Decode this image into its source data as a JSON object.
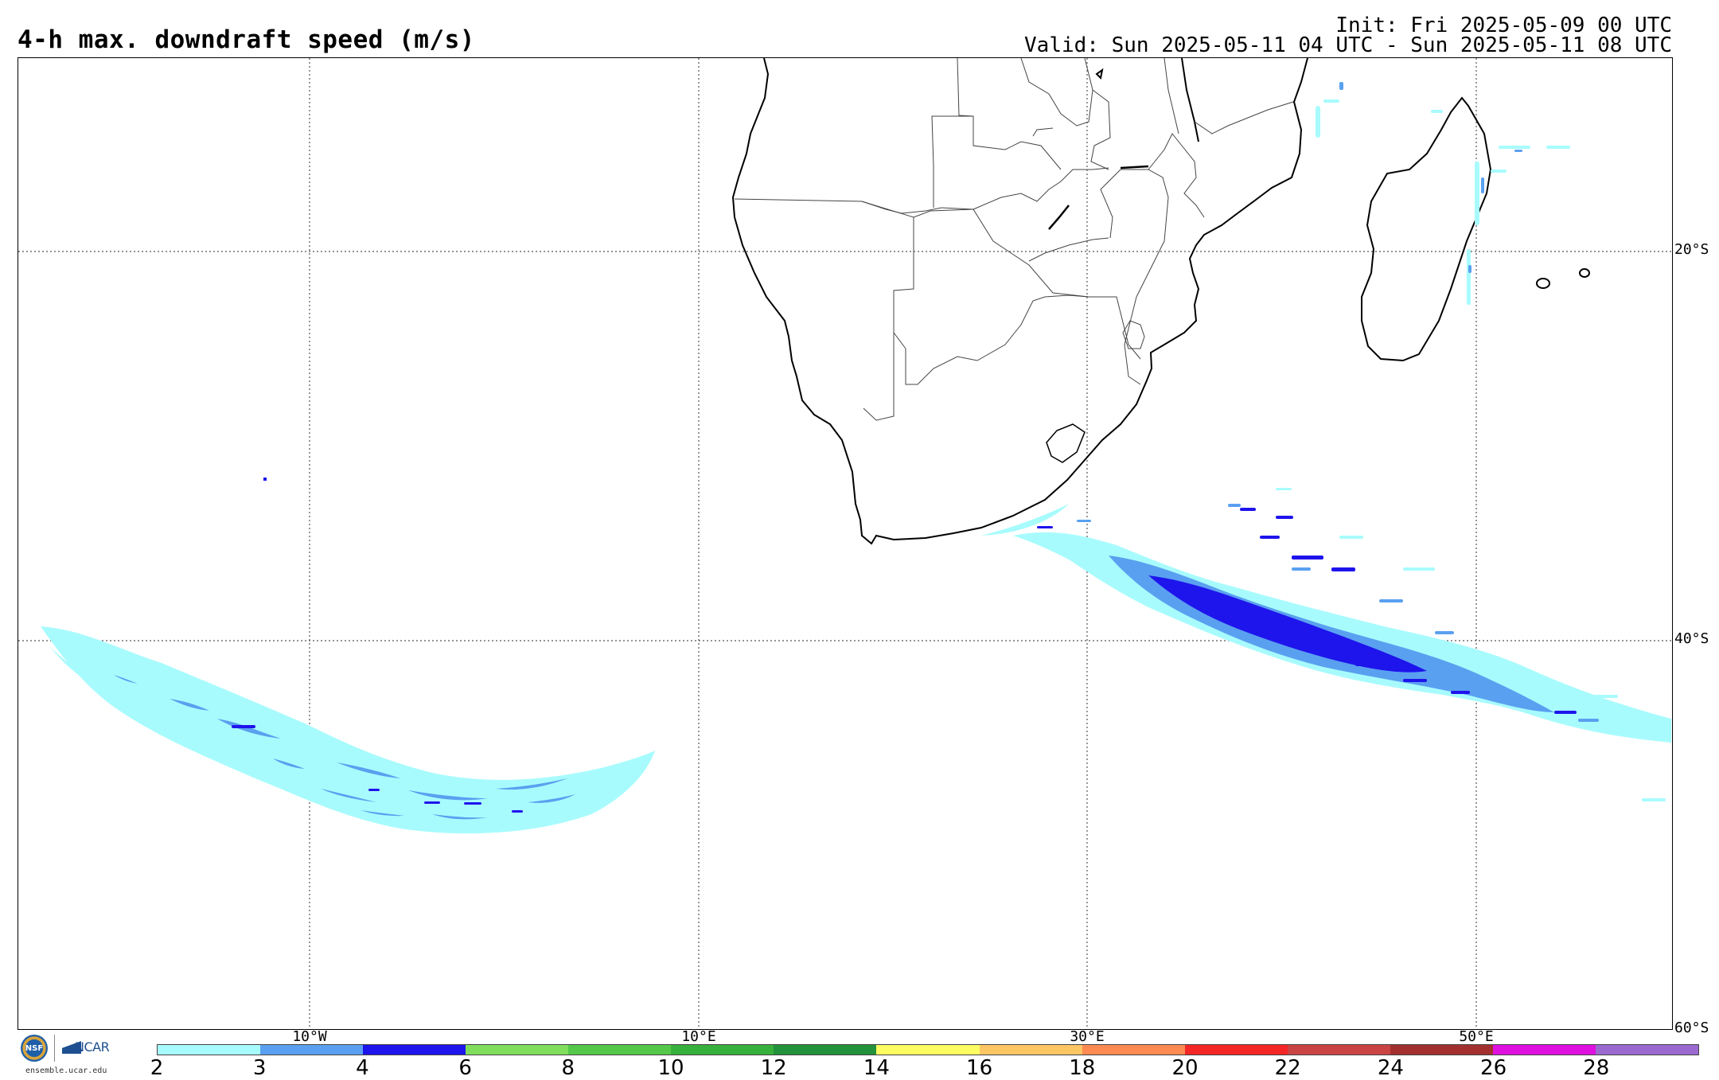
{
  "header": {
    "title": "4-h max. downdraft speed (m/s)",
    "init": "Init: Fri 2025-05-09 00 UTC",
    "valid": "Valid: Sun 2025-05-11 04 UTC - Sun 2025-05-11 08 UTC"
  },
  "map": {
    "lat_labels": [
      "20°S",
      "40°S",
      "60°S"
    ],
    "lon_labels": [
      "10°W",
      "10°E",
      "30°E",
      "50°E"
    ],
    "region": "Southern Africa and South Atlantic / Indian Ocean",
    "grid": "dotted"
  },
  "colorbar": {
    "ticks": [
      "2",
      "3",
      "4",
      "6",
      "8",
      "10",
      "12",
      "14",
      "16",
      "18",
      "20",
      "22",
      "24",
      "26",
      "28"
    ],
    "colors": [
      "#a8fbfd",
      "#5aa0f0",
      "#1e14ec",
      "#80de5c",
      "#55c84a",
      "#38b03c",
      "#23923a",
      "#fdfc62",
      "#fdc665",
      "#fc8a52",
      "#f52626",
      "#cb4444",
      "#a3302e",
      "#e010e0",
      "#9a6ad0"
    ]
  },
  "branding": {
    "nsf": "NSF",
    "ncar": "NCAR",
    "site": "ensemble.ucar.edu"
  }
}
